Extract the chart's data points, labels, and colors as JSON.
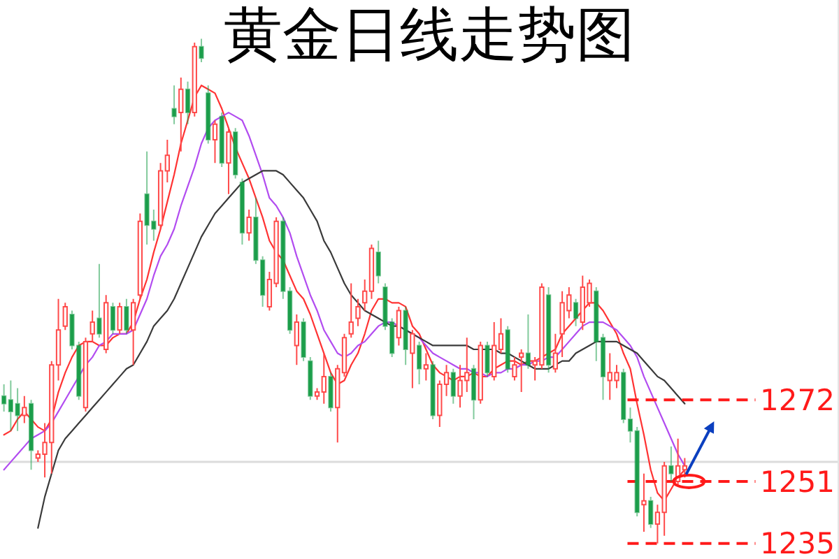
{
  "chart_data": {
    "type": "candlestick",
    "title": "黄金日线走势图",
    "categories": [
      null,
      null,
      null,
      null,
      null,
      null,
      null,
      null,
      null,
      null,
      null,
      null,
      null,
      null,
      null,
      null,
      null,
      null,
      null,
      null,
      null,
      null,
      null,
      null,
      null,
      null,
      null,
      null,
      null,
      null,
      null,
      null,
      null,
      null,
      null,
      null,
      null,
      null,
      null,
      null,
      null,
      null,
      null,
      null,
      null,
      null,
      null,
      null,
      null,
      null,
      null,
      null,
      null,
      null,
      null,
      null,
      null,
      null,
      null,
      null,
      null,
      null,
      null,
      null,
      null,
      null,
      null,
      null,
      null,
      null,
      null,
      null,
      null,
      null,
      null,
      null,
      null,
      null,
      null,
      null,
      null,
      null,
      null,
      null,
      null,
      null,
      null,
      null,
      null,
      null,
      null,
      null,
      null,
      null,
      null,
      null,
      null,
      null,
      null,
      null,
      null
    ],
    "ohlc": [
      [
        1273,
        1276,
        1269,
        1271
      ],
      [
        1272,
        1277,
        1264,
        1269
      ],
      [
        1271,
        1275,
        1264,
        1268
      ],
      [
        1268,
        1273,
        1266,
        1270
      ],
      [
        1271,
        1272,
        1254,
        1259
      ],
      [
        1257,
        1259,
        1256,
        1258
      ],
      [
        1258,
        1266,
        1252,
        1261
      ],
      [
        1261,
        1282,
        1253,
        1281
      ],
      [
        1281,
        1298,
        1277,
        1290
      ],
      [
        1291,
        1297,
        1290,
        1296
      ],
      [
        1294,
        1295,
        1285,
        1286
      ],
      [
        1286,
        1287,
        1272,
        1273
      ],
      [
        1270,
        1288,
        1269,
        1287
      ],
      [
        1289,
        1295,
        1287,
        1292
      ],
      [
        1293,
        1307,
        1288,
        1289
      ],
      [
        1285,
        1299,
        1284,
        1297
      ],
      [
        1296,
        1297,
        1289,
        1290
      ],
      [
        1290,
        1297,
        1289,
        1296
      ],
      [
        1296,
        1298,
        1289,
        1290
      ],
      [
        1290,
        1298,
        1281,
        1297
      ],
      [
        1299,
        1320,
        1298,
        1318
      ],
      [
        1325,
        1336,
        1312,
        1317
      ],
      [
        1318,
        1321,
        1313,
        1316
      ],
      [
        1317,
        1333,
        1316,
        1331
      ],
      [
        1331,
        1339,
        1328,
        1335
      ],
      [
        1347,
        1353,
        1343,
        1345
      ],
      [
        1346,
        1355,
        1336,
        1352
      ],
      [
        1352,
        1354,
        1343,
        1346
      ],
      [
        1346,
        1364,
        1345,
        1363
      ],
      [
        1363,
        1365,
        1359,
        1360
      ],
      [
        1351,
        1353,
        1338,
        1339
      ],
      [
        1339,
        1344,
        1333,
        1343
      ],
      [
        1345,
        1346,
        1332,
        1333
      ],
      [
        1333,
        1342,
        1325,
        1341
      ],
      [
        1341,
        1342,
        1329,
        1330
      ],
      [
        1328,
        1329,
        1312,
        1315
      ],
      [
        1315,
        1321,
        1313,
        1319
      ],
      [
        1319,
        1324,
        1307,
        1308
      ],
      [
        1308,
        1309,
        1296,
        1299
      ],
      [
        1296,
        1305,
        1295,
        1303
      ],
      [
        1302,
        1319,
        1301,
        1318
      ],
      [
        1318,
        1319,
        1298,
        1300
      ],
      [
        1300,
        1301,
        1289,
        1290
      ],
      [
        1286,
        1294,
        1281,
        1292
      ],
      [
        1292,
        1293,
        1282,
        1283
      ],
      [
        1282,
        1283,
        1272,
        1273
      ],
      [
        1273,
        1275,
        1272,
        1274
      ],
      [
        1274,
        1284,
        1271,
        1278
      ],
      [
        1278,
        1279,
        1269,
        1270
      ],
      [
        1270,
        1281,
        1261,
        1280
      ],
      [
        1279,
        1289,
        1278,
        1288
      ],
      [
        1289,
        1302,
        1288,
        1292
      ],
      [
        1293,
        1298,
        1291,
        1296
      ],
      [
        1297,
        1303,
        1295,
        1300
      ],
      [
        1300,
        1312,
        1298,
        1311
      ],
      [
        1310,
        1313,
        1302,
        1304
      ],
      [
        1301,
        1302,
        1290,
        1291
      ],
      [
        1292,
        1293,
        1283,
        1284
      ],
      [
        1288,
        1296,
        1286,
        1295
      ],
      [
        1295,
        1296,
        1281,
        1285
      ],
      [
        1284,
        1290,
        1275,
        1289
      ],
      [
        1286,
        1287,
        1276,
        1280
      ],
      [
        1280,
        1284,
        1277,
        1281
      ],
      [
        1281,
        1282,
        1267,
        1268
      ],
      [
        1268,
        1277,
        1265,
        1276
      ],
      [
        1276,
        1281,
        1273,
        1279
      ],
      [
        1279,
        1280,
        1271,
        1273
      ],
      [
        1273,
        1281,
        1270,
        1277
      ],
      [
        1277,
        1288,
        1274,
        1279
      ],
      [
        1280,
        1281,
        1267,
        1272
      ],
      [
        1272,
        1287,
        1271,
        1286
      ],
      [
        1286,
        1287,
        1278,
        1279
      ],
      [
        1278,
        1292,
        1277,
        1286
      ],
      [
        1285,
        1293,
        1284,
        1289
      ],
      [
        1290,
        1291,
        1279,
        1280
      ],
      [
        1278,
        1283,
        1277,
        1281
      ],
      [
        1283,
        1285,
        1274,
        1284
      ],
      [
        1284,
        1294,
        1280,
        1281
      ],
      [
        1281,
        1283,
        1277,
        1282
      ],
      [
        1281,
        1302,
        1280,
        1301
      ],
      [
        1299,
        1301,
        1279,
        1281
      ],
      [
        1280,
        1289,
        1279,
        1284
      ],
      [
        1289,
        1300,
        1283,
        1297
      ],
      [
        1295,
        1301,
        1293,
        1299
      ],
      [
        1297,
        1298,
        1291,
        1293
      ],
      [
        1292,
        1304,
        1290,
        1301
      ],
      [
        1297,
        1303,
        1296,
        1302
      ],
      [
        1300,
        1301,
        1282,
        1287
      ],
      [
        1288,
        1289,
        1272,
        1278
      ],
      [
        1277,
        1284,
        1272,
        1279
      ],
      [
        1277,
        1281,
        1275,
        1279
      ],
      [
        1279,
        1280,
        1266,
        1267
      ],
      [
        1267,
        1270,
        1261,
        1264
      ],
      [
        1264,
        1265,
        1242,
        1243
      ],
      [
        1245,
        1253,
        1238,
        1246
      ],
      [
        1246,
        1247,
        1239,
        1240
      ],
      [
        1240,
        1245,
        1235,
        1243
      ],
      [
        1243,
        1256,
        1237,
        1255
      ],
      [
        1255,
        1260,
        1251,
        1253
      ],
      [
        1251,
        1262,
        1250,
        1255
      ],
      [
        1254,
        1257,
        1252,
        1255
      ]
    ],
    "colors": [
      "#1c9e4b",
      "#1c9e4b",
      "#1c9e4b",
      "#ff4a4a",
      "#1c9e4b",
      "#ff4a4a",
      "#ff4a4a",
      "#ff4a4a",
      "#ff4a4a",
      "#ff4a4a",
      "#1c9e4b",
      "#1c9e4b",
      "#ff4a4a",
      "#ff4a4a",
      "#1c9e4b",
      "#ff4a4a",
      "#1c9e4b",
      "#ff4a4a",
      "#1c9e4b",
      "#ff4a4a",
      "#ff4a4a",
      "#1c9e4b",
      "#1c9e4b",
      "#ff4a4a",
      "#ff4a4a",
      "#1c9e4b",
      "#ff4a4a",
      "#1c9e4b",
      "#ff4a4a",
      "#1c9e4b",
      "#1c9e4b",
      "#ff4a4a",
      "#1c9e4b",
      "#ff4a4a",
      "#1c9e4b",
      "#1c9e4b",
      "#ff4a4a",
      "#1c9e4b",
      "#1c9e4b",
      "#ff4a4a",
      "#ff4a4a",
      "#1c9e4b",
      "#1c9e4b",
      "#ff4a4a",
      "#1c9e4b",
      "#1c9e4b",
      "#ff4a4a",
      "#ff4a4a",
      "#1c9e4b",
      "#ff4a4a",
      "#ff4a4a",
      "#ff4a4a",
      "#ff4a4a",
      "#ff4a4a",
      "#ff4a4a",
      "#1c9e4b",
      "#1c9e4b",
      "#1c9e4b",
      "#ff4a4a",
      "#1c9e4b",
      "#ff4a4a",
      "#1c9e4b",
      "#ff4a4a",
      "#1c9e4b",
      "#ff4a4a",
      "#ff4a4a",
      "#1c9e4b",
      "#ff4a4a",
      "#ff4a4a",
      "#1c9e4b",
      "#ff4a4a",
      "#1c9e4b",
      "#ff4a4a",
      "#ff4a4a",
      "#1c9e4b",
      "#ff4a4a",
      "#ff4a4a",
      "#1c9e4b",
      "#ff4a4a",
      "#ff4a4a",
      "#1c9e4b",
      "#ff4a4a",
      "#ff4a4a",
      "#ff4a4a",
      "#1c9e4b",
      "#ff4a4a",
      "#ff4a4a",
      "#1c9e4b",
      "#1c9e4b",
      "#ff4a4a",
      "#ff4a4a",
      "#1c9e4b",
      "#1c9e4b",
      "#1c9e4b",
      "#ff4a4a",
      "#1c9e4b",
      "#ff4a4a",
      "#ff4a4a",
      "#1c9e4b",
      "#ff4a4a",
      "#ff4a4a"
    ],
    "series": [
      {
        "type": "line",
        "color": "#ff3333",
        "values": [
          1263,
          1264,
          1267,
          1269,
          1267,
          1265,
          1264,
          1267,
          1274,
          1279,
          1283,
          1286,
          1287,
          1287,
          1286,
          1286,
          1288,
          1289,
          1289,
          1292,
          1298,
          1303,
          1310,
          1316,
          1323,
          1330,
          1338,
          1344,
          1350,
          1353,
          1352,
          1351,
          1347,
          1342,
          1337,
          1333,
          1329,
          1324,
          1319,
          1313,
          1310,
          1308,
          1304,
          1300,
          1298,
          1294,
          1289,
          1284,
          1279,
          1276,
          1277,
          1281,
          1284,
          1289,
          1295,
          1298,
          1298,
          1297,
          1297,
          1296,
          1291,
          1289,
          1285,
          1281,
          1279,
          1278,
          1277,
          1278,
          1278,
          1279,
          1278,
          1278,
          1280,
          1281,
          1282,
          1282,
          1281,
          1282,
          1282,
          1283,
          1284,
          1285,
          1289,
          1291,
          1293,
          1295,
          1297,
          1297,
          1295,
          1292,
          1289,
          1284,
          1280,
          1271,
          1263,
          1254,
          1248,
          1246,
          1249,
          1252,
          1254
        ]
      },
      {
        "type": "line",
        "color": "#b24cf0",
        "values": [
          1254,
          1256,
          1258,
          1260,
          1262,
          1263,
          1264,
          1266,
          1269,
          1272,
          1275,
          1278,
          1281,
          1283,
          1286,
          1287,
          1289,
          1289,
          1289,
          1290,
          1294,
          1298,
          1304,
          1309,
          1312,
          1316,
          1322,
          1327,
          1332,
          1338,
          1342,
          1344,
          1345,
          1346,
          1345,
          1344,
          1340,
          1335,
          1330,
          1324,
          1322,
          1319,
          1315,
          1309,
          1304,
          1299,
          1295,
          1290,
          1287,
          1284,
          1283,
          1284,
          1286,
          1287,
          1289,
          1291,
          1292,
          1292,
          1291,
          1290,
          1289,
          1288,
          1286,
          1284,
          1283,
          1282,
          1281,
          1280,
          1280,
          1279,
          1279,
          1278,
          1279,
          1279,
          1280,
          1280,
          1281,
          1281,
          1282,
          1282,
          1283,
          1283,
          1285,
          1287,
          1289,
          1291,
          1292,
          1292,
          1292,
          1291,
          1290,
          1288,
          1286,
          1283,
          1278,
          1274,
          1270,
          1266,
          1262,
          1258,
          1255
        ]
      },
      {
        "type": "line",
        "color": "#3a3a3a",
        "values": [
          null,
          null,
          null,
          null,
          null,
          1239,
          1247,
          1253,
          1259,
          1262,
          1264,
          1266,
          1268,
          1270,
          1272,
          1274,
          1276,
          1278,
          1280,
          1281,
          1284,
          1287,
          1291,
          1293,
          1295,
          1298,
          1302,
          1306,
          1310,
          1314,
          1317,
          1320,
          1322,
          1324,
          1326,
          1328,
          1329,
          1330,
          1331,
          1331,
          1331,
          1330,
          1328,
          1326,
          1324,
          1321,
          1318,
          1313,
          1310,
          1306,
          1302,
          1299,
          1297,
          1295,
          1294,
          1293,
          1292,
          1291,
          1291,
          1290,
          1289,
          1288,
          1287,
          1286,
          1286,
          1286,
          1286,
          1286,
          1286,
          1285,
          1285,
          1285,
          1285,
          1284,
          1284,
          1283,
          1282,
          1281,
          1280,
          1280,
          1280,
          1281,
          1282,
          1282,
          1284,
          1285,
          1286,
          1287,
          1287,
          1287,
          1287,
          1286,
          1285,
          1284,
          1282,
          1280,
          1278,
          1277,
          1275,
          1273,
          1271
        ]
      }
    ],
    "ylim": [
      1231,
      1375
    ],
    "yticks": [
      1235,
      1251,
      1272
    ],
    "ref_lines": [
      {
        "axis": "y",
        "value": 1256,
        "color": "#dcdcdc",
        "line_style": "solid"
      },
      {
        "axis": "y",
        "value": 1272,
        "color": "#ff1a1a",
        "line_style": "dashed"
      },
      {
        "axis": "y",
        "value": 1251,
        "color": "#ff1a1a",
        "line_style": "dashed"
      },
      {
        "axis": "y",
        "value": 1235,
        "color": "#ff1a1a",
        "line_style": "dashed"
      }
    ]
  }
}
